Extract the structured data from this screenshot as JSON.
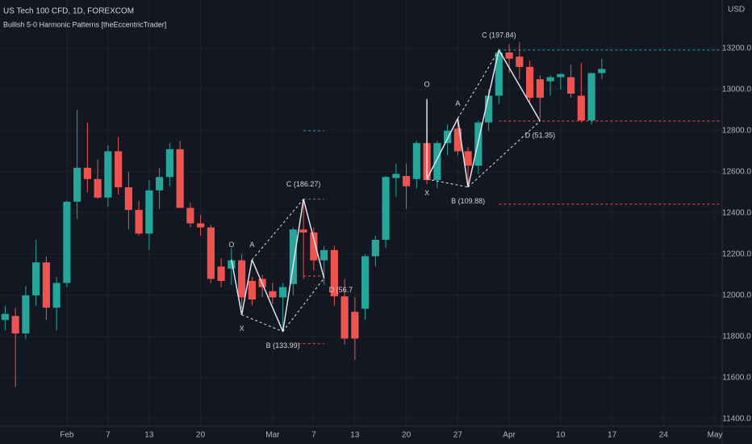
{
  "chart_data": {
    "type": "candlestick",
    "title": "US Tech 100 CFD, 1D, FOREXCOM",
    "subtitle": "Bullish 5-0 Harmonic Patterns [theEccentricTrader]",
    "y_axis_label": "USD",
    "up_color": "#26a69a",
    "down_color": "#ef5350",
    "grid": true,
    "xlim": [
      -0.5,
      69.7
    ],
    "ylim": [
      11364,
      13435
    ],
    "xticks": [
      {
        "value": 6,
        "label": "Feb"
      },
      {
        "value": 10,
        "label": "7"
      },
      {
        "value": 14,
        "label": "13"
      },
      {
        "value": 19,
        "label": "20"
      },
      {
        "value": 26,
        "label": "Mar"
      },
      {
        "value": 30,
        "label": "7"
      },
      {
        "value": 34,
        "label": "13"
      },
      {
        "value": 39,
        "label": "20"
      },
      {
        "value": 44,
        "label": "27"
      },
      {
        "value": 49,
        "label": "Apr"
      },
      {
        "value": 54,
        "label": "10"
      },
      {
        "value": 59,
        "label": "17"
      },
      {
        "value": 64,
        "label": "24"
      },
      {
        "value": 69,
        "label": "May"
      }
    ],
    "yticks": [
      {
        "value": 11400,
        "label": "11400.0"
      },
      {
        "value": 11600,
        "label": "11600.0"
      },
      {
        "value": 11800,
        "label": "11800.0"
      },
      {
        "value": 12000,
        "label": "12000.0"
      },
      {
        "value": 12200,
        "label": "12200.0"
      },
      {
        "value": 12400,
        "label": "12400.0"
      },
      {
        "value": 12600,
        "label": "12600.0"
      },
      {
        "value": 12800,
        "label": "12800.0"
      },
      {
        "value": 13000,
        "label": "13000.0"
      },
      {
        "value": 13200,
        "label": "13200.0"
      }
    ],
    "open": [
      11880,
      11900,
      11815,
      12000,
      12160,
      11940,
      12060,
      12455,
      12620,
      12565,
      12475,
      12700,
      12525,
      12415,
      12300,
      12510,
      12575,
      12710,
      12425,
      12350,
      12330,
      12140,
      12130,
      12170,
      12070,
      12080,
      12020,
      11990,
      12055,
      12320,
      12305,
      12170,
      12220,
      11995,
      11920,
      11935,
      12190,
      12270,
      12570,
      12580,
      12565,
      12740,
      12560,
      12740,
      12810,
      12700,
      12630,
      12840,
      12970,
      13180,
      13160,
      13110,
      13050,
      13040,
      13060,
      13060,
      12970,
      12850,
      13080
    ],
    "high": [
      11950,
      11940,
      12045,
      12270,
      12190,
      12090,
      12460,
      12900,
      12840,
      12660,
      12730,
      12770,
      12600,
      12460,
      12560,
      12620,
      12740,
      12750,
      12450,
      12390,
      12340,
      12180,
      12230,
      12200,
      12090,
      12100,
      12060,
      12060,
      12330,
      12470,
      12330,
      12240,
      12240,
      12080,
      11990,
      12200,
      12290,
      12580,
      12640,
      12640,
      12750,
      12955,
      12750,
      12830,
      12860,
      12720,
      12850,
      13000,
      13200,
      13220,
      13230,
      13140,
      13070,
      13070,
      13080,
      13120,
      13130,
      13080,
      13150
    ],
    "low": [
      11830,
      11555,
      11790,
      11950,
      11880,
      11830,
      12040,
      12370,
      12500,
      12470,
      12430,
      12490,
      12320,
      12290,
      12220,
      12420,
      12530,
      12430,
      12330,
      12290,
      12060,
      12040,
      12050,
      11935,
      11950,
      11990,
      11960,
      11820,
      12000,
      12080,
      12120,
      12050,
      11950,
      11760,
      11685,
      11880,
      12140,
      12230,
      12480,
      12420,
      12520,
      12540,
      12520,
      12680,
      12680,
      12525,
      12590,
      12800,
      12930,
      13080,
      13050,
      12940,
      12860,
      12970,
      13000,
      12960,
      12840,
      12830,
      13050
    ],
    "close": [
      11910,
      11815,
      12000,
      12160,
      11940,
      12060,
      12455,
      12620,
      12565,
      12475,
      12700,
      12525,
      12415,
      12300,
      12510,
      12575,
      12710,
      12425,
      12350,
      12330,
      12080,
      12070,
      12170,
      11990,
      11980,
      12040,
      11990,
      12040,
      12320,
      12305,
      12170,
      12220,
      11995,
      11790,
      11790,
      12190,
      12270,
      12575,
      12590,
      12530,
      12740,
      12560,
      12740,
      12800,
      12700,
      12630,
      12840,
      12970,
      13180,
      13150,
      13110,
      12960,
      12960,
      13060,
      13075,
      12980,
      12850,
      13080,
      13100
    ],
    "patterns": [
      {
        "points": [
          {
            "label": "O",
            "x": 22,
            "y": 12173
          },
          {
            "label": "X",
            "x": 23,
            "y": 11906
          },
          {
            "label": "A",
            "x": 24,
            "y": 12173
          },
          {
            "label": "B (133.99)",
            "x": 27,
            "y": 11824
          },
          {
            "label": "C (186.27)",
            "x": 29,
            "y": 12467
          },
          {
            "label": "D (56.7",
            "x": 31,
            "y": 12083
          }
        ]
      },
      {
        "points": [
          {
            "label": "O",
            "x": 41,
            "y": 12953
          },
          {
            "label": "X",
            "x": 41,
            "y": 12565
          },
          {
            "label": "A",
            "x": 44,
            "y": 12859
          },
          {
            "label": "B (109.88)",
            "x": 45,
            "y": 12526
          },
          {
            "label": "C (197.84)",
            "x": 48,
            "y": 13192
          },
          {
            "label": "D (51.35)",
            "x": 52,
            "y": 12847
          }
        ]
      }
    ],
    "levels": [
      {
        "value": 12800,
        "from": 29,
        "to": 31,
        "color": "#26a69a"
      },
      {
        "value": 12467,
        "from": 29,
        "to": 31,
        "color": "#787b86"
      },
      {
        "value": 12094,
        "from": 29,
        "to": 31,
        "color": "#ef5350"
      },
      {
        "value": 11765,
        "from": 28.5,
        "to": 31,
        "color": "#ef5350"
      },
      {
        "value": 13192,
        "from": 48,
        "to": 69.7,
        "color": "#26a69a"
      },
      {
        "value": 12847,
        "from": 48,
        "to": 69.7,
        "color": "#ef5350"
      },
      {
        "value": 12443,
        "from": 48,
        "to": 69.7,
        "color": "#ef5350"
      }
    ]
  }
}
